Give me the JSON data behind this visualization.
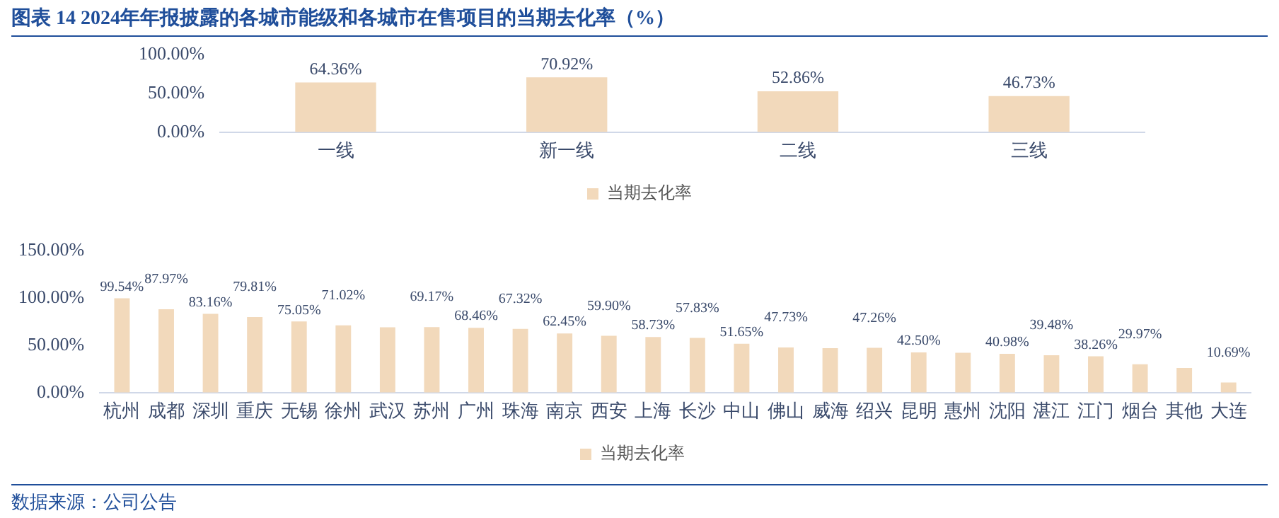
{
  "chart_data": [
    {
      "type": "bar",
      "title": "图表 14 2024年年报披露的各城市能级和各城市在售项目的当期去化率（%）",
      "categories": [
        "一线",
        "新一线",
        "二线",
        "三线"
      ],
      "series": [
        {
          "name": "当期去化率",
          "color": "#f2d9bb",
          "values": [
            64.36,
            70.92,
            52.86,
            46.73
          ],
          "value_labels": [
            "64.36%",
            "70.92%",
            "52.86%",
            "46.73%"
          ]
        }
      ],
      "ylim": [
        0,
        100
      ],
      "yticks": [
        {
          "value": 0,
          "label": "0.00%"
        },
        {
          "value": 50,
          "label": "50.00%"
        },
        {
          "value": 100,
          "label": "100.00%"
        }
      ],
      "grid": false,
      "legend": "bottom"
    },
    {
      "type": "bar",
      "categories": [
        "杭州",
        "成都",
        "深圳",
        "重庆",
        "无锡",
        "徐州",
        "武汉",
        "苏州",
        "广州",
        "珠海",
        "南京",
        "西安",
        "上海",
        "长沙",
        "中山",
        "佛山",
        "威海",
        "绍兴",
        "昆明",
        "惠州",
        "沈阳",
        "湛江",
        "江门",
        "烟台",
        "其他",
        "大连"
      ],
      "series": [
        {
          "name": "当期去化率",
          "color": "#f2d9bb",
          "values": [
            99.54,
            87.97,
            83.16,
            79.81,
            75.05,
            71.02,
            69,
            69.17,
            68.46,
            67.32,
            62.45,
            59.9,
            58.73,
            57.83,
            51.65,
            47.73,
            47,
            47.26,
            42.5,
            42,
            40.98,
            39.48,
            38.26,
            29.97,
            26,
            10.69
          ],
          "value_labels": [
            "99.54%",
            "87.97%",
            "83.16%",
            "79.81%",
            "75.05%",
            "71.02%",
            null,
            "69.17%",
            "68.46%",
            "67.32%",
            "62.45%",
            "59.90%",
            "58.73%",
            "57.83%",
            "51.65%",
            "47.73%",
            null,
            "47.26%",
            "42.50%",
            null,
            "40.98%",
            "39.48%",
            "38.26%",
            "29.97%",
            null,
            "10.69%"
          ]
        }
      ],
      "ylim": [
        0,
        150
      ],
      "yticks": [
        {
          "value": 0,
          "label": "0.00%"
        },
        {
          "value": 50,
          "label": "50.00%"
        },
        {
          "value": 100,
          "label": "100.00%"
        },
        {
          "value": 150,
          "label": "150.00%"
        }
      ],
      "grid": false,
      "legend": "bottom",
      "annotations": [
        "数据来源：公司公告"
      ]
    }
  ]
}
